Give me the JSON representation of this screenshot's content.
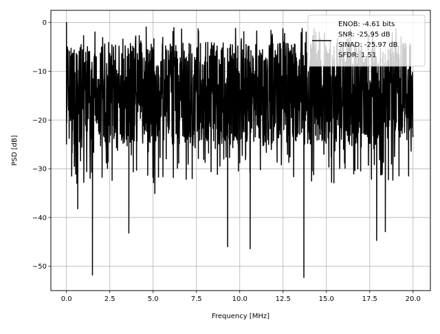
{
  "chart_data": {
    "type": "line",
    "title": "",
    "xlabel": "Frequency [MHz]",
    "ylabel": "PSD [dB]",
    "xlim": [
      -0.9,
      21.0
    ],
    "ylim": [
      -55,
      2.5
    ],
    "xticks": [
      0.0,
      2.5,
      5.0,
      7.5,
      10.0,
      12.5,
      15.0,
      17.5,
      20.0
    ],
    "xtick_labels": [
      "0.0",
      "2.5",
      "5.0",
      "7.5",
      "10.0",
      "12.5",
      "15.0",
      "17.5",
      "20.0"
    ],
    "yticks": [
      0,
      -10,
      -20,
      -30,
      -40,
      -50
    ],
    "ytick_labels": [
      "0",
      "−10",
      "−20",
      "−30",
      "−40",
      "−50"
    ],
    "grid": true,
    "legend_position": "top-right",
    "legend_lines": [
      "ENOB: -4.61 bits",
      "SNR: -25.95 dB",
      "SINAD: -25.97 dB",
      "SFDR: 1.51"
    ],
    "series": [
      {
        "color": "#000000",
        "x_range": [
          0.0,
          20.0
        ],
        "noise_band_db": [
          -25,
          -4
        ],
        "notable_points": [
          {
            "x": 0.0,
            "y": 0.0
          },
          {
            "x": 0.05,
            "y": -5.0
          },
          {
            "x": 0.3,
            "y": -31.5
          },
          {
            "x": 0.65,
            "y": -38.2
          },
          {
            "x": 1.5,
            "y": -51.8
          },
          {
            "x": 3.6,
            "y": -43.2
          },
          {
            "x": 4.6,
            "y": -0.9
          },
          {
            "x": 5.1,
            "y": -35.1
          },
          {
            "x": 7.6,
            "y": -1.3
          },
          {
            "x": 9.3,
            "y": -46.0
          },
          {
            "x": 10.6,
            "y": -46.4
          },
          {
            "x": 11.8,
            "y": -1.6
          },
          {
            "x": 13.7,
            "y": -52.3
          },
          {
            "x": 17.9,
            "y": -44.7
          },
          {
            "x": 18.4,
            "y": -42.9
          }
        ]
      }
    ]
  }
}
